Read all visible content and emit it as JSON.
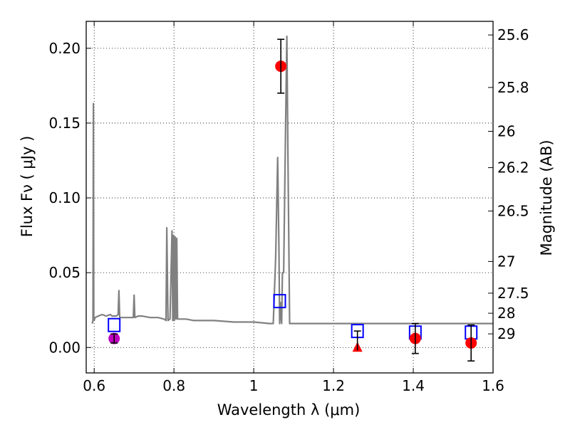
{
  "chart_data": {
    "type": "scatter",
    "xlabel": "Wavelength  λ (μm)",
    "ylabel": "Flux  Fν  ( μJy )",
    "ylabel_right": "Magnitude (AB)",
    "xlim": [
      0.58,
      1.6
    ],
    "ylim": [
      -0.017,
      0.218
    ],
    "grid": true,
    "x_ticks": [
      0.6,
      0.8,
      1.0,
      1.2,
      1.4,
      1.6
    ],
    "x_tick_labels": [
      "0.6",
      "0.8",
      "1",
      "1.2",
      "1.4",
      "1.6"
    ],
    "y_ticks": [
      0.0,
      0.05,
      0.1,
      0.15,
      0.2
    ],
    "y_tick_labels": [
      "0.00",
      "0.05",
      "0.10",
      "0.15",
      "0.20"
    ],
    "right_ticks": [
      {
        "label": "25.6",
        "flux": 0.2089
      },
      {
        "label": "25.8",
        "flux": 0.1738
      },
      {
        "label": "26",
        "flux": 0.1445
      },
      {
        "label": "26.2",
        "flux": 0.1202
      },
      {
        "label": "26.5",
        "flux": 0.0912
      },
      {
        "label": "27",
        "flux": 0.0575
      },
      {
        "label": "27.5",
        "flux": 0.0363
      },
      {
        "label": "28",
        "flux": 0.0229
      },
      {
        "label": "29",
        "flux": 0.0091
      }
    ],
    "series": [
      {
        "kind": "model-spectrum",
        "color": "#808080",
        "x": [
          0.595,
          0.597,
          0.598,
          0.599,
          0.6,
          0.602,
          0.61,
          0.62,
          0.63,
          0.64,
          0.645,
          0.65,
          0.655,
          0.66,
          0.662,
          0.664,
          0.67,
          0.68,
          0.69,
          0.698,
          0.7,
          0.702,
          0.71,
          0.72,
          0.74,
          0.76,
          0.775,
          0.78,
          0.782,
          0.785,
          0.79,
          0.795,
          0.797,
          0.799,
          0.801,
          0.803,
          0.805,
          0.807,
          0.809,
          0.812,
          0.83,
          0.85,
          0.88,
          0.9,
          0.95,
          1.0,
          1.04,
          1.049,
          1.055,
          1.06,
          1.063,
          1.065,
          1.068,
          1.07,
          1.072,
          1.075,
          1.08,
          1.083,
          1.086,
          1.09,
          1.095,
          1.1,
          1.15,
          1.2,
          1.25,
          1.3,
          1.35,
          1.4,
          1.45,
          1.5,
          1.55,
          1.58,
          1.6
        ],
        "y": [
          0.016,
          0.018,
          0.163,
          0.02,
          0.018,
          0.02,
          0.021,
          0.022,
          0.021,
          0.022,
          0.021,
          0.021,
          0.021,
          0.022,
          0.038,
          0.02,
          0.02,
          0.02,
          0.02,
          0.02,
          0.035,
          0.02,
          0.021,
          0.021,
          0.02,
          0.02,
          0.019,
          0.018,
          0.08,
          0.018,
          0.019,
          0.078,
          0.018,
          0.075,
          0.018,
          0.074,
          0.019,
          0.073,
          0.019,
          0.019,
          0.019,
          0.018,
          0.018,
          0.018,
          0.017,
          0.017,
          0.016,
          0.016,
          0.06,
          0.127,
          0.07,
          0.016,
          0.03,
          0.016,
          0.05,
          0.05,
          0.15,
          0.208,
          0.12,
          0.016,
          0.016,
          0.016,
          0.016,
          0.016,
          0.016,
          0.016,
          0.016,
          0.016,
          0.016,
          0.016,
          0.016,
          0.016,
          0.016
        ]
      },
      {
        "kind": "model-photometry",
        "marker": "open-square",
        "color": "#0000ff",
        "x": [
          0.65,
          1.065,
          1.26,
          1.405,
          1.545
        ],
        "y": [
          0.015,
          0.031,
          0.011,
          0.01,
          0.01
        ]
      },
      {
        "kind": "observed-detections",
        "marker": "circle",
        "color": "#ff0000",
        "x": [
          1.068,
          1.405,
          1.545
        ],
        "y": [
          0.188,
          0.006,
          0.003
        ],
        "yerr": [
          0.018,
          0.01,
          0.012
        ]
      },
      {
        "kind": "observed-upper-limit",
        "marker": "triangle",
        "color": "#ff0000",
        "x": [
          1.26
        ],
        "y": [
          0.0
        ],
        "errbar": [
          [
            1.26,
            -0.002,
            0.011
          ]
        ]
      },
      {
        "kind": "observed-purple",
        "marker": "circle",
        "color": "#bf00bf",
        "x": [
          0.65
        ],
        "y": [
          0.006
        ],
        "yerr": [
          0.003
        ]
      }
    ]
  }
}
